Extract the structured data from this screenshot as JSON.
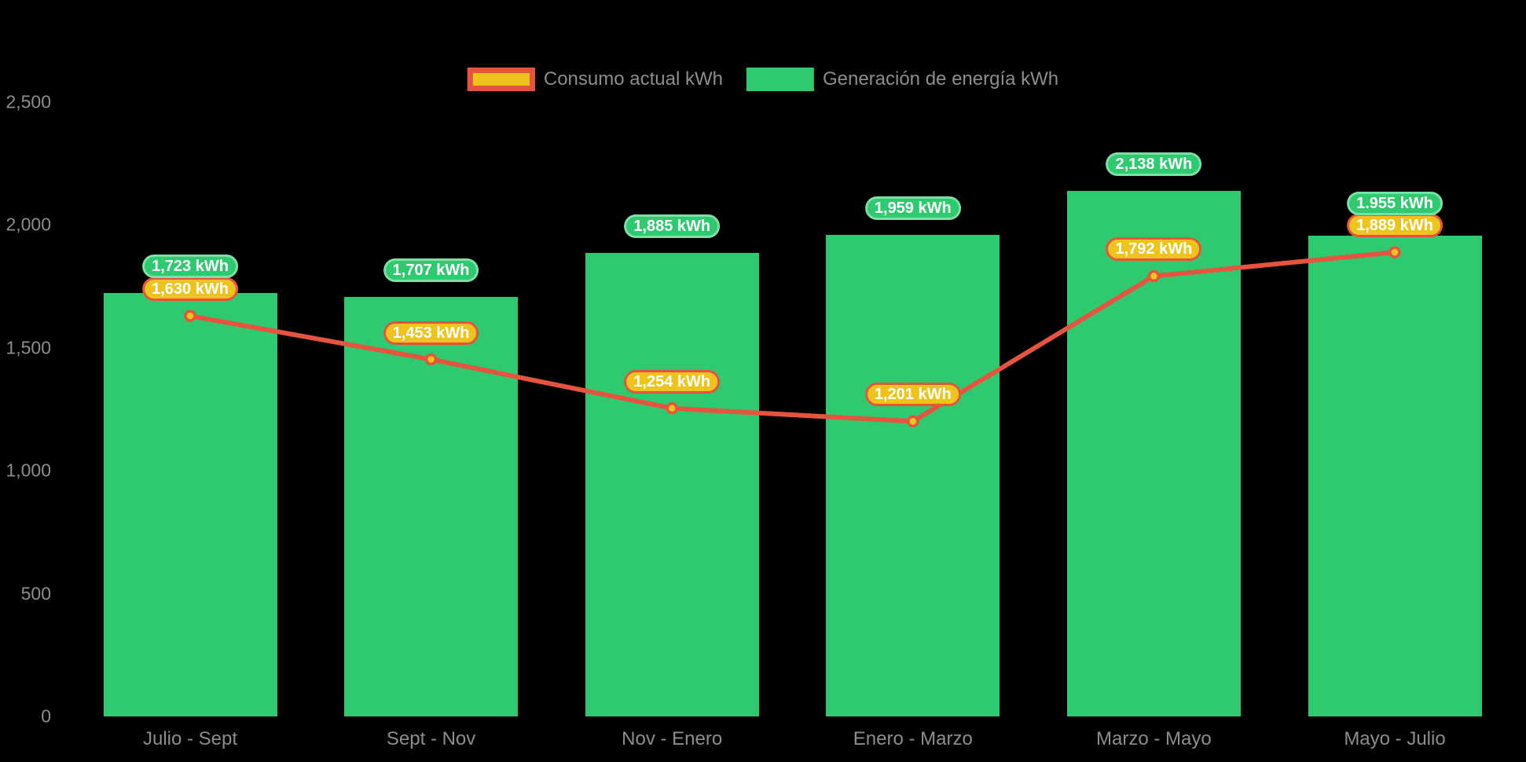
{
  "legend": {
    "items": [
      {
        "label": "Consumo actual kWh",
        "series": "consumo"
      },
      {
        "label": "Generación de energía kWh",
        "series": "generacion"
      }
    ]
  },
  "colors": {
    "background": "#000000",
    "bar_green": "#2FCA70",
    "badge_green_border": "#7BDFA6",
    "line_red": "#E65440",
    "point_yellow": "#EEC31C",
    "axis_text": "#8D8D8D",
    "badge_text": "#FFFFFF"
  },
  "chart_data": {
    "type": "bar",
    "subtype": "bar-with-line-overlay",
    "title": "",
    "xlabel": "",
    "ylabel": "",
    "categories": [
      "Julio - Sept",
      "Sept - Nov",
      "Nov - Enero",
      "Enero - Marzo",
      "Marzo - Mayo",
      "Mayo - Julio"
    ],
    "series": [
      {
        "name": "Generación de energía kWh",
        "type": "bar",
        "color": "#2FCA70",
        "values": [
          1723,
          1707,
          1885,
          1959,
          2138,
          1955
        ],
        "labels": [
          "1,723 kWh",
          "1,707 kWh",
          "1,885 kWh",
          "1,959 kWh",
          "2,138 kWh",
          "1.955 kWh"
        ]
      },
      {
        "name": "Consumo actual kWh",
        "type": "line",
        "color": "#E65440",
        "point_color": "#EEC31C",
        "values": [
          1630,
          1453,
          1254,
          1201,
          1792,
          1889
        ],
        "labels": [
          "1,630 kWh",
          "1,453 kWh",
          "1,254 kWh",
          "1,201 kWh",
          "1,792 kWh",
          "1,889 kWh"
        ]
      }
    ],
    "y_ticks": [
      "2,500",
      "2,000",
      "1,500",
      "1,000",
      "500",
      "0"
    ],
    "ylim": [
      0,
      2500
    ],
    "grid": false,
    "legend_position": "top"
  }
}
